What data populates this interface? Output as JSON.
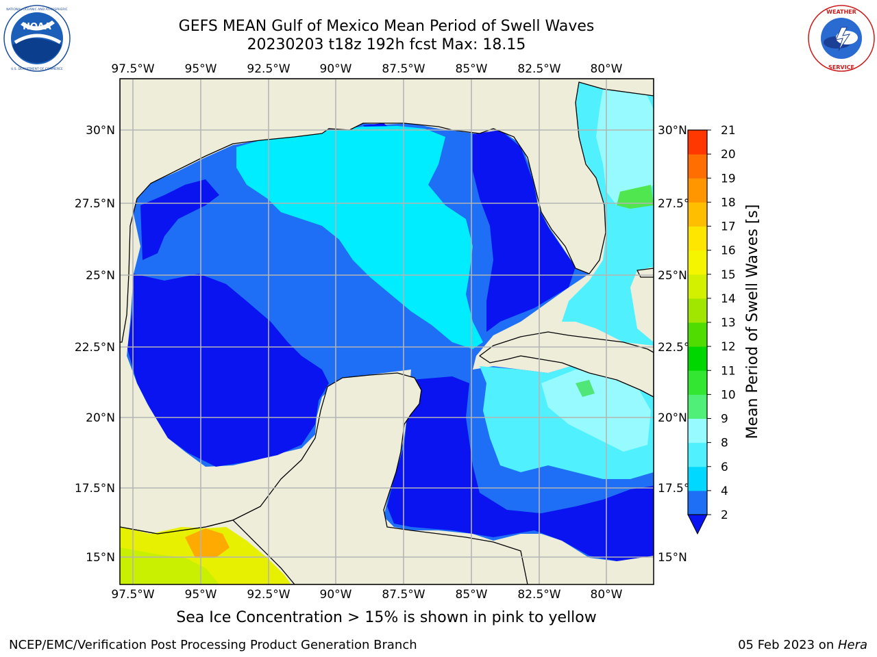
{
  "header": {
    "title_line1": "GEFS MEAN Gulf of Mexico Mean Period of Swell Waves",
    "title_line2": "20230203 t18z 192h fcst   Max: 18.15"
  },
  "logos": {
    "left": "noaa-logo",
    "left_text": "NOAA",
    "left_ring_text": "NATIONAL OCEANIC AND ATMOSPHERIC ADMINISTRATION · U.S. DEPARTMENT OF COMMERCE",
    "right": "nws-logo",
    "right_ring_text": "NATIONAL WEATHER SERVICE"
  },
  "map": {
    "lon_labels": [
      "97.5°W",
      "95°W",
      "92.5°W",
      "90°W",
      "87.5°W",
      "85°W",
      "82.5°W",
      "80°W"
    ],
    "lat_labels": [
      "30°N",
      "27.5°N",
      "25°N",
      "22.5°N",
      "20°N",
      "17.5°N",
      "15°N"
    ],
    "colors": {
      "land": "#eeedda",
      "coast": "#000000",
      "grid": "#b4b4b4"
    }
  },
  "colorbar": {
    "label": "Mean Period of Swell Waves [s]",
    "ticks": [
      "2",
      "4",
      "6",
      "8",
      "9",
      "10",
      "11",
      "12",
      "13",
      "14",
      "15",
      "16",
      "17",
      "18",
      "19",
      "20",
      "21"
    ],
    "colors": [
      "#1e6ff5",
      "#00d8ff",
      "#50f0ff",
      "#96faff",
      "#50f078",
      "#32e632",
      "#00d700",
      "#50dc00",
      "#a0e600",
      "#d2f000",
      "#f5f500",
      "#ffe600",
      "#ffbe00",
      "#ff9600",
      "#ff6e00",
      "#ff3700",
      "#ff0000"
    ],
    "under_color": "#0a14f0"
  },
  "footer": {
    "note": "Sea Ice Concentration > 15% is shown in pink to yellow",
    "credit": "NCEP/EMC/Verification Post Processing Product Generation Branch",
    "date": "05 Feb 2023 on ",
    "machine": "Hera"
  }
}
